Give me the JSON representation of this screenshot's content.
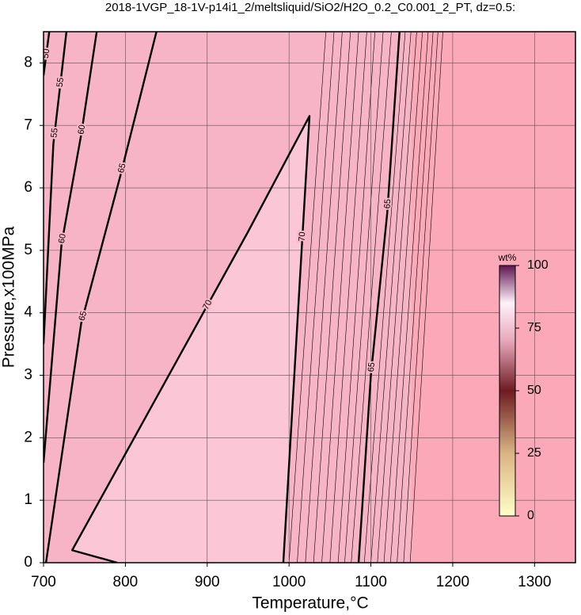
{
  "chart_data": {
    "type": "contour",
    "title": "2018-1VGP_18-1V-p14i1_2/meltsliquid/SiO2/H2O_0.2_C0.001_2_PT, dz=0.5:",
    "x_label": "Temperature,°C",
    "y_label": "Pressure,x100MPa",
    "xlim": [
      700,
      1350
    ],
    "ylim": [
      0,
      8.5
    ],
    "xticks": [
      700,
      800,
      900,
      1000,
      1100,
      1200,
      1300
    ],
    "yticks": [
      0,
      1,
      2,
      3,
      4,
      5,
      6,
      7,
      8
    ],
    "grid": true,
    "contours": [
      {
        "level": 50,
        "x": [
          700,
          707
        ],
        "y": [
          7.8,
          8.5
        ]
      },
      {
        "level": 55,
        "x": [
          700,
          712,
          720,
          728
        ],
        "y": [
          3.5,
          6.7,
          7.6,
          8.5
        ]
      },
      {
        "level": 60,
        "x": [
          700,
          722,
          746,
          765
        ],
        "y": [
          1.6,
          5.1,
          6.85,
          8.5
        ]
      },
      {
        "level": 65,
        "x": [
          703,
          746,
          794,
          838
        ],
        "y": [
          0,
          3.83,
          6.2,
          8.5
        ]
      },
      {
        "level": 70,
        "x": [
          790,
          735,
          950,
          1025,
          993
        ],
        "y": [
          0,
          0.2,
          5.3,
          7.15,
          0
        ]
      },
      {
        "level": 65,
        "x": [
          1085,
          1100,
          1120,
          1135
        ],
        "y": [
          0,
          3,
          5.6,
          8.5
        ]
      }
    ],
    "thin_contours": [
      {
        "level": 69.5,
        "x": [
          1000,
          1045
        ],
        "y": [
          0,
          8.5
        ]
      },
      {
        "level": 69,
        "x": [
          1010,
          1055
        ],
        "y": [
          0,
          8.5
        ]
      },
      {
        "level": 68.5,
        "x": [
          1020,
          1065
        ],
        "y": [
          0,
          8.5
        ]
      },
      {
        "level": 68,
        "x": [
          1030,
          1075
        ],
        "y": [
          0,
          8.5
        ]
      },
      {
        "level": 67.5,
        "x": [
          1040,
          1085
        ],
        "y": [
          0,
          8.5
        ]
      },
      {
        "level": 67,
        "x": [
          1050,
          1095
        ],
        "y": [
          0,
          8.5
        ]
      },
      {
        "level": 66.5,
        "x": [
          1060,
          1105
        ],
        "y": [
          0,
          8.5
        ]
      },
      {
        "level": 66,
        "x": [
          1068,
          1115
        ],
        "y": [
          0,
          8.5
        ]
      },
      {
        "level": 65.5,
        "x": [
          1076,
          1125
        ],
        "y": [
          0,
          8.5
        ]
      },
      {
        "level": 64.5,
        "x": [
          1092,
          1142
        ],
        "y": [
          0,
          8.5
        ]
      },
      {
        "level": 64,
        "x": [
          1100,
          1149
        ],
        "y": [
          0,
          8.5
        ]
      },
      {
        "level": 63.5,
        "x": [
          1108,
          1156
        ],
        "y": [
          0,
          8.5
        ]
      },
      {
        "level": 63,
        "x": [
          1116,
          1163
        ],
        "y": [
          0,
          8.5
        ]
      },
      {
        "level": 62.5,
        "x": [
          1124,
          1170
        ],
        "y": [
          0,
          8.5
        ]
      },
      {
        "level": 62,
        "x": [
          1132,
          1176
        ],
        "y": [
          0,
          8.5
        ]
      },
      {
        "level": 61.5,
        "x": [
          1140,
          1182
        ],
        "y": [
          0,
          8.5
        ]
      },
      {
        "level": 61,
        "x": [
          1148,
          1188
        ],
        "y": [
          0,
          8.5
        ]
      }
    ],
    "colorbar": {
      "label": "wt%",
      "lim": [
        0,
        100
      ],
      "ticks": [
        0,
        25,
        50,
        75,
        100
      ]
    }
  }
}
